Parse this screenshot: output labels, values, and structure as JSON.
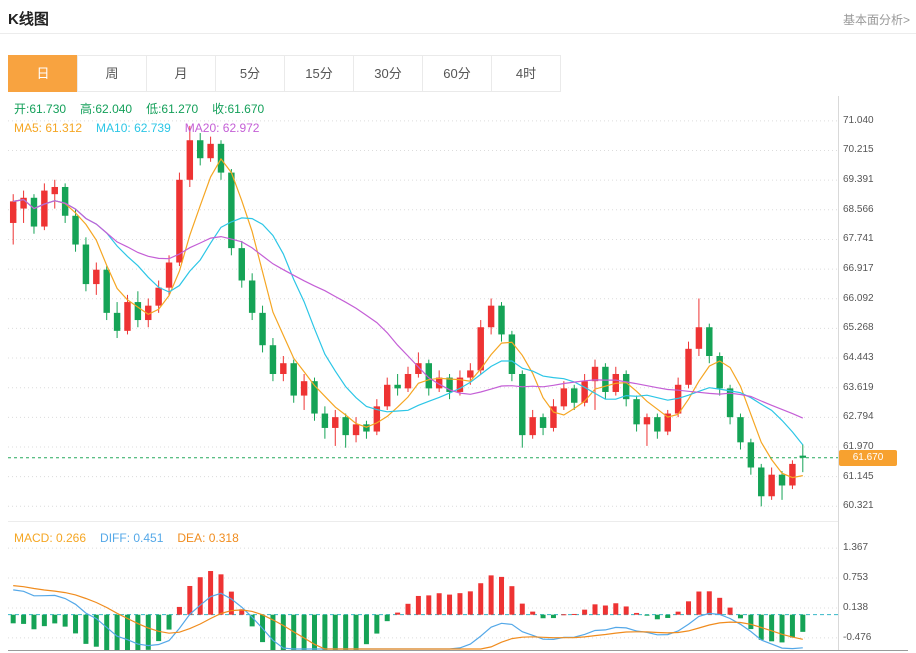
{
  "header": {
    "title": "K线图",
    "link": "基本面分析>"
  },
  "tabs": {
    "items": [
      "日",
      "周",
      "月",
      "5分",
      "15分",
      "30分",
      "60分",
      "4时"
    ],
    "active_index": 0
  },
  "info": {
    "ohlc_color": "#14a05a",
    "ohlc": [
      {
        "name": "open",
        "text": "开:61.730"
      },
      {
        "name": "high",
        "text": "高:62.040"
      },
      {
        "name": "low",
        "text": "低:61.270"
      },
      {
        "name": "close",
        "text": "收:61.670"
      }
    ],
    "ma": [
      {
        "name": "ma5",
        "text": "MA5: 61.312",
        "color": "#f5a623"
      },
      {
        "name": "ma10",
        "text": "MA10: 62.739",
        "color": "#2cc6e6"
      },
      {
        "name": "ma20",
        "text": "MA20: 62.972",
        "color": "#c45fd6"
      }
    ],
    "macd": [
      {
        "name": "macd",
        "text": "MACD: 0.266",
        "color": "#f5a623"
      },
      {
        "name": "diff",
        "text": "DIFF: 0.451",
        "color": "#54a8e8"
      },
      {
        "name": "dea",
        "text": "DEA: 0.318",
        "color": "#f08c1e"
      }
    ]
  },
  "colors": {
    "up": "#ee3333",
    "down": "#15a356",
    "ma5": "#f5a623",
    "ma10": "#2cc6e6",
    "ma20": "#c45fd6",
    "diff": "#54a8e8",
    "dea": "#f08c1e",
    "price_line": "#27a95d",
    "badge_bg": "#f7a12f",
    "grid": "#dcdcdc",
    "zero_line": "#35b8c8",
    "tab_active_bg": "#f8a340"
  },
  "chart_data": {
    "type": "candlestick",
    "title": "K线图 (日)",
    "legend": [
      "MA5",
      "MA10",
      "MA20"
    ],
    "price_axis_ticks": [
      71.04,
      70.215,
      69.391,
      68.566,
      67.741,
      66.917,
      66.092,
      65.268,
      64.443,
      63.619,
      62.794,
      61.97,
      61.145,
      60.321
    ],
    "current_price": 61.67,
    "ohlc_last": {
      "open": 61.73,
      "high": 62.04,
      "low": 61.27,
      "close": 61.67
    },
    "ma_last": {
      "ma5": 61.312,
      "ma10": 62.739,
      "ma20": 62.972
    },
    "candles": [
      [
        68.2,
        69.0,
        67.6,
        68.8
      ],
      [
        68.6,
        69.1,
        68.2,
        68.9
      ],
      [
        68.9,
        69.0,
        67.9,
        68.1
      ],
      [
        68.1,
        69.3,
        68.0,
        69.1
      ],
      [
        69.0,
        69.4,
        68.6,
        69.2
      ],
      [
        69.2,
        69.3,
        68.2,
        68.4
      ],
      [
        68.4,
        68.6,
        67.4,
        67.6
      ],
      [
        67.6,
        67.8,
        66.3,
        66.5
      ],
      [
        66.5,
        67.1,
        66.2,
        66.9
      ],
      [
        66.9,
        67.0,
        65.5,
        65.7
      ],
      [
        65.7,
        66.0,
        65.0,
        65.2
      ],
      [
        65.2,
        66.2,
        65.1,
        66.0
      ],
      [
        66.0,
        66.3,
        65.3,
        65.5
      ],
      [
        65.5,
        66.1,
        65.3,
        65.9
      ],
      [
        65.9,
        66.6,
        65.7,
        66.4
      ],
      [
        66.4,
        67.3,
        66.2,
        67.1
      ],
      [
        67.1,
        69.6,
        67.0,
        69.4
      ],
      [
        69.4,
        70.9,
        69.2,
        70.5
      ],
      [
        70.5,
        70.7,
        69.8,
        70.0
      ],
      [
        70.0,
        70.6,
        69.9,
        70.4
      ],
      [
        70.4,
        70.5,
        69.4,
        69.6
      ],
      [
        69.6,
        69.7,
        67.3,
        67.5
      ],
      [
        67.5,
        67.7,
        66.4,
        66.6
      ],
      [
        66.6,
        66.8,
        65.5,
        65.7
      ],
      [
        65.7,
        65.9,
        64.6,
        64.8
      ],
      [
        64.8,
        65.0,
        63.8,
        64.0
      ],
      [
        64.0,
        64.5,
        63.8,
        64.3
      ],
      [
        64.3,
        64.4,
        63.2,
        63.4
      ],
      [
        63.4,
        64.0,
        63.0,
        63.8
      ],
      [
        63.8,
        63.9,
        62.7,
        62.9
      ],
      [
        62.9,
        63.1,
        62.2,
        62.5
      ],
      [
        62.5,
        63.0,
        62.0,
        62.8
      ],
      [
        62.8,
        62.9,
        61.95,
        62.3
      ],
      [
        62.3,
        62.8,
        62.1,
        62.6
      ],
      [
        62.6,
        62.7,
        62.2,
        62.4
      ],
      [
        62.4,
        63.3,
        62.3,
        63.1
      ],
      [
        63.1,
        63.9,
        63.0,
        63.7
      ],
      [
        63.7,
        64.0,
        63.4,
        63.6
      ],
      [
        63.6,
        64.2,
        63.5,
        64.0
      ],
      [
        64.0,
        64.6,
        63.9,
        64.3
      ],
      [
        64.3,
        64.4,
        63.4,
        63.6
      ],
      [
        63.6,
        64.1,
        63.5,
        63.9
      ],
      [
        63.9,
        64.0,
        63.3,
        63.5
      ],
      [
        63.5,
        64.1,
        63.4,
        63.9
      ],
      [
        63.9,
        64.3,
        63.7,
        64.1
      ],
      [
        64.1,
        65.5,
        64.0,
        65.3
      ],
      [
        65.3,
        66.1,
        65.1,
        65.9
      ],
      [
        65.9,
        66.0,
        64.9,
        65.1
      ],
      [
        65.1,
        65.2,
        63.8,
        64.0
      ],
      [
        64.0,
        64.1,
        61.95,
        62.3
      ],
      [
        62.3,
        63.0,
        62.2,
        62.8
      ],
      [
        62.8,
        62.9,
        62.3,
        62.5
      ],
      [
        62.5,
        63.3,
        62.4,
        63.1
      ],
      [
        63.1,
        63.8,
        63.0,
        63.6
      ],
      [
        63.6,
        63.7,
        63.0,
        63.2
      ],
      [
        63.2,
        64.0,
        63.1,
        63.8
      ],
      [
        63.8,
        64.4,
        63.0,
        64.2
      ],
      [
        64.2,
        64.3,
        63.3,
        63.5
      ],
      [
        63.5,
        64.2,
        63.4,
        64.0
      ],
      [
        64.0,
        64.1,
        63.1,
        63.3
      ],
      [
        63.3,
        63.4,
        62.4,
        62.6
      ],
      [
        62.6,
        62.9,
        62.0,
        62.8
      ],
      [
        62.8,
        62.9,
        62.2,
        62.4
      ],
      [
        62.4,
        63.0,
        62.3,
        62.9
      ],
      [
        62.9,
        63.9,
        62.8,
        63.7
      ],
      [
        63.7,
        64.9,
        63.6,
        64.7
      ],
      [
        64.7,
        66.1,
        64.5,
        65.3
      ],
      [
        65.3,
        65.4,
        64.3,
        64.5
      ],
      [
        64.5,
        64.6,
        63.4,
        63.6
      ],
      [
        63.6,
        63.7,
        62.6,
        62.8
      ],
      [
        62.8,
        62.9,
        61.9,
        62.1
      ],
      [
        62.1,
        62.2,
        61.2,
        61.4
      ],
      [
        61.4,
        61.5,
        60.32,
        60.6
      ],
      [
        60.6,
        61.4,
        60.5,
        61.2
      ],
      [
        61.2,
        61.3,
        60.5,
        60.9
      ],
      [
        60.9,
        61.6,
        60.8,
        61.5
      ],
      [
        61.73,
        62.04,
        61.27,
        61.67
      ]
    ],
    "macd_panel": {
      "type": "macd-histogram",
      "axis_ticks": [
        1.367,
        0.753,
        0.138,
        -0.476
      ],
      "last": {
        "macd": 0.266,
        "diff": 0.451,
        "dea": 0.318
      }
    }
  }
}
